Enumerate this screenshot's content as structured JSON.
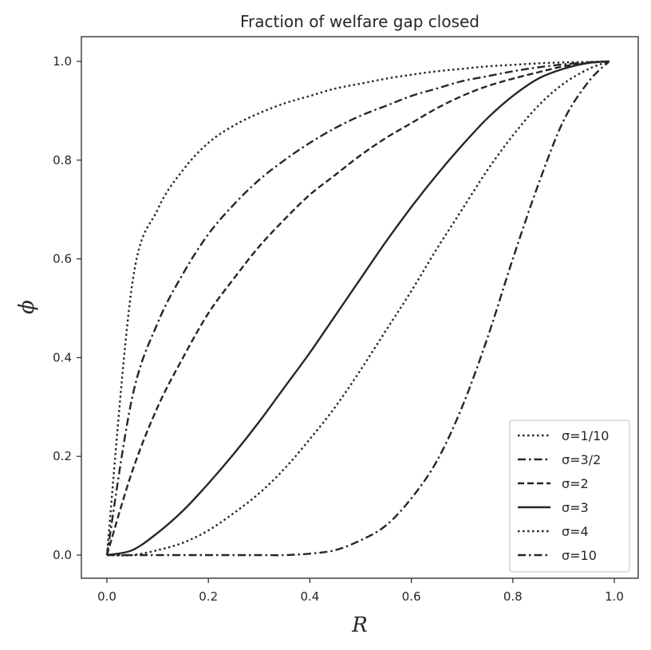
{
  "chart_data": {
    "type": "line",
    "title": "Fraction of welfare gap closed",
    "xlabel": "R",
    "ylabel": "ϕ",
    "xlim": [
      -0.05,
      1.03
    ],
    "ylim": [
      -0.05,
      1.05
    ],
    "xticks": [
      0.0,
      0.2,
      0.4,
      0.6,
      0.8,
      1.0
    ],
    "xtick_labels": [
      "0.0",
      "0.2",
      "0.4",
      "0.6",
      "0.8",
      "1.0"
    ],
    "yticks": [
      0.0,
      0.2,
      0.4,
      0.6,
      0.8,
      1.0
    ],
    "ytick_labels": [
      "0.0",
      "0.2",
      "0.4",
      "0.6",
      "0.8",
      "1.0"
    ],
    "grid": false,
    "legend_position": "lower-right",
    "color": "#262626",
    "x": [
      0,
      0.05,
      0.1,
      0.15,
      0.2,
      0.25,
      0.3,
      0.35,
      0.4,
      0.45,
      0.5,
      0.55,
      0.6,
      0.65,
      0.7,
      0.75,
      0.8,
      0.85,
      0.9,
      0.95,
      0.99
    ],
    "series": [
      {
        "name": "σ=1/10",
        "dash": "dotted",
        "values": [
          0,
          0.55,
          0.7,
          0.78,
          0.835,
          0.87,
          0.895,
          0.915,
          0.93,
          0.945,
          0.955,
          0.965,
          0.973,
          0.98,
          0.985,
          0.99,
          0.993,
          0.996,
          0.998,
          0.999,
          1.0
        ]
      },
      {
        "name": "σ=3/2",
        "dash": "dashdot",
        "values": [
          0,
          0.32,
          0.47,
          0.57,
          0.65,
          0.71,
          0.76,
          0.8,
          0.835,
          0.865,
          0.89,
          0.91,
          0.93,
          0.945,
          0.96,
          0.97,
          0.98,
          0.988,
          0.994,
          0.998,
          1.0
        ]
      },
      {
        "name": "σ=2",
        "dash": "dashed",
        "values": [
          0,
          0.17,
          0.3,
          0.4,
          0.49,
          0.56,
          0.625,
          0.68,
          0.73,
          0.77,
          0.81,
          0.845,
          0.875,
          0.905,
          0.93,
          0.95,
          0.965,
          0.978,
          0.99,
          0.997,
          1.0
        ]
      },
      {
        "name": "σ=3",
        "dash": "solid",
        "values": [
          0,
          0.01,
          0.045,
          0.09,
          0.145,
          0.205,
          0.27,
          0.34,
          0.41,
          0.485,
          0.56,
          0.635,
          0.705,
          0.77,
          0.83,
          0.885,
          0.93,
          0.965,
          0.985,
          0.997,
          1.0
        ]
      },
      {
        "name": "σ=4",
        "dash": "dotted",
        "values": [
          0,
          0.0,
          0.01,
          0.025,
          0.05,
          0.085,
          0.125,
          0.175,
          0.235,
          0.3,
          0.375,
          0.455,
          0.535,
          0.62,
          0.7,
          0.78,
          0.85,
          0.91,
          0.955,
          0.985,
          1.0
        ]
      },
      {
        "name": "σ=10",
        "dash": "dashdot",
        "values": [
          0,
          0,
          0,
          0,
          0,
          0,
          0.0,
          0.0,
          0.003,
          0.01,
          0.03,
          0.06,
          0.115,
          0.19,
          0.3,
          0.44,
          0.6,
          0.75,
          0.88,
          0.96,
          1.0
        ]
      }
    ]
  }
}
